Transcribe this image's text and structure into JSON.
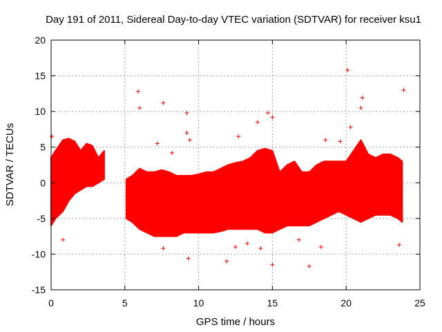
{
  "chart_data": {
    "type": "scatter",
    "title": "Day 191 of 2011, Sidereal Day-to-day VTEC variation (SDTVAR) for receiver ksu1",
    "xlabel": "GPS time / hours",
    "ylabel": "SDTVAR / TECUs",
    "xlim": [
      0,
      25
    ],
    "ylim": [
      -15,
      20
    ],
    "xticks": [
      "0",
      "5",
      "10",
      "15",
      "20",
      "25"
    ],
    "yticks": [
      "-15",
      "-10",
      "-5",
      "0",
      "5",
      "10",
      "15",
      "20"
    ],
    "grid": true,
    "marker": "plus",
    "color": "#ff0000",
    "envelope": {
      "segments": [
        {
          "x": [
            0.0,
            0.3,
            0.8,
            1.2,
            1.6,
            2.0,
            2.4,
            2.8,
            3.2,
            3.6
          ],
          "upper": [
            3.5,
            4.5,
            6.0,
            6.2,
            5.8,
            4.5,
            5.5,
            5.2,
            3.5,
            4.5
          ],
          "lower": [
            -6.0,
            -5.0,
            -4.0,
            -2.5,
            -1.5,
            -1.0,
            -0.5,
            -0.5,
            0.0,
            0.5
          ]
        },
        {
          "x": [
            5.1,
            5.5,
            6.0,
            6.5,
            7.0,
            7.5,
            8.0,
            8.5,
            9.0,
            9.5,
            10.0,
            10.5,
            11.0,
            11.5,
            12.0,
            12.5,
            13.0,
            13.5,
            14.0,
            14.5,
            15.0,
            15.5,
            16.0,
            16.5,
            17.0,
            17.5,
            18.0,
            18.5,
            19.0,
            19.5,
            20.0,
            20.5,
            21.0,
            21.5,
            22.0,
            22.5,
            23.0,
            23.5,
            23.8
          ],
          "upper": [
            0.5,
            1.0,
            2.0,
            1.5,
            1.5,
            1.8,
            1.5,
            1.0,
            1.0,
            1.0,
            1.2,
            1.5,
            1.5,
            2.0,
            2.5,
            2.8,
            3.0,
            3.5,
            4.5,
            4.8,
            4.5,
            1.5,
            2.5,
            3.0,
            1.5,
            1.5,
            2.5,
            3.0,
            3.0,
            3.0,
            3.0,
            4.5,
            6.0,
            4.0,
            3.5,
            4.0,
            4.0,
            3.5,
            3.0
          ],
          "lower": [
            -5.0,
            -5.5,
            -6.5,
            -7.0,
            -7.5,
            -7.5,
            -7.5,
            -7.5,
            -7.0,
            -7.0,
            -7.0,
            -7.0,
            -7.0,
            -6.8,
            -6.5,
            -6.5,
            -6.5,
            -6.5,
            -6.5,
            -7.0,
            -7.0,
            -6.5,
            -6.0,
            -6.0,
            -6.0,
            -6.0,
            -5.5,
            -5.0,
            -4.5,
            -4.0,
            -4.5,
            -5.0,
            -5.5,
            -5.0,
            -4.5,
            -4.5,
            -4.5,
            -5.0,
            -5.5
          ]
        }
      ]
    },
    "outliers": [
      {
        "x": 0.05,
        "y": 6.5
      },
      {
        "x": 0.8,
        "y": -8.0
      },
      {
        "x": 5.9,
        "y": 12.8
      },
      {
        "x": 6.0,
        "y": 10.5
      },
      {
        "x": 7.6,
        "y": 11.2
      },
      {
        "x": 9.2,
        "y": 9.8
      },
      {
        "x": 9.2,
        "y": 7.0
      },
      {
        "x": 9.4,
        "y": 6.0
      },
      {
        "x": 9.3,
        "y": -10.6
      },
      {
        "x": 7.2,
        "y": 5.5
      },
      {
        "x": 7.6,
        "y": -9.2
      },
      {
        "x": 8.2,
        "y": 4.2
      },
      {
        "x": 11.9,
        "y": -11.0
      },
      {
        "x": 12.7,
        "y": 6.5
      },
      {
        "x": 14.0,
        "y": 8.5
      },
      {
        "x": 14.7,
        "y": 9.8
      },
      {
        "x": 15.0,
        "y": 9.2
      },
      {
        "x": 15.0,
        "y": -11.5
      },
      {
        "x": 17.5,
        "y": -11.7
      },
      {
        "x": 20.1,
        "y": 15.8
      },
      {
        "x": 20.3,
        "y": 7.8
      },
      {
        "x": 21.1,
        "y": 11.9
      },
      {
        "x": 21.0,
        "y": 10.5
      },
      {
        "x": 23.9,
        "y": 13.0
      },
      {
        "x": 18.6,
        "y": 6.0
      },
      {
        "x": 19.6,
        "y": 5.8
      },
      {
        "x": 23.6,
        "y": -8.7
      },
      {
        "x": 12.5,
        "y": -9.0
      },
      {
        "x": 13.3,
        "y": -8.5
      },
      {
        "x": 16.8,
        "y": -8.0
      },
      {
        "x": 18.3,
        "y": -9.0
      },
      {
        "x": 14.2,
        "y": -9.2
      }
    ]
  }
}
